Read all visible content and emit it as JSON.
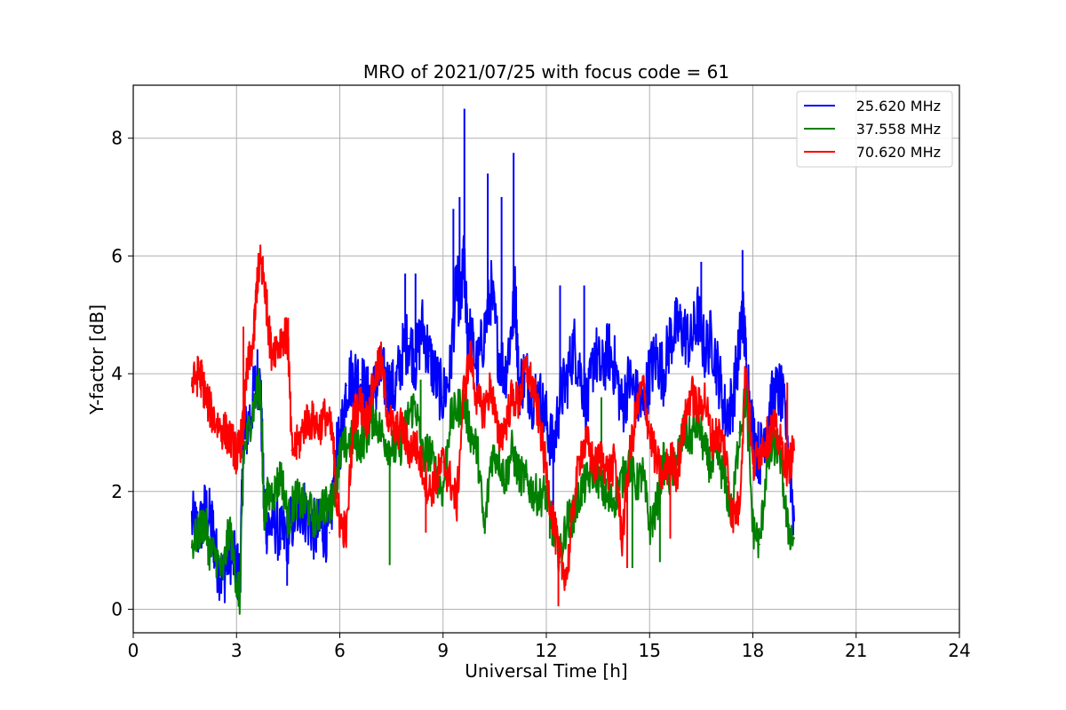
{
  "chart_data": {
    "type": "line",
    "title": "MRO of 2021/07/25 with focus code = 61",
    "xlabel": "Universal Time [h]",
    "ylabel": "Y-factor [dB]",
    "xlim": [
      0,
      24
    ],
    "ylim": [
      -0.4,
      8.9
    ],
    "xticks": [
      0,
      3,
      6,
      9,
      12,
      15,
      18,
      21,
      24
    ],
    "yticks": [
      0,
      2,
      4,
      6,
      8
    ],
    "grid": true,
    "legend_position": "top-right",
    "series": [
      {
        "name": "25.620 MHz",
        "color": "#0000ff",
        "x": [
          1.7,
          1.9,
          2.1,
          2.3,
          2.4,
          2.6,
          2.8,
          3.0,
          3.1,
          3.2,
          3.4,
          3.6,
          3.7,
          3.8,
          3.9,
          4.1,
          4.3,
          4.5,
          4.7,
          4.9,
          5.1,
          5.3,
          5.5,
          5.7,
          5.9,
          6.0,
          6.2,
          6.4,
          6.6,
          6.8,
          7.0,
          7.2,
          7.4,
          7.6,
          7.8,
          8.0,
          8.2,
          8.4,
          8.6,
          8.8,
          9.0,
          9.2,
          9.4,
          9.5,
          9.6,
          9.7,
          9.8,
          10.0,
          10.2,
          10.4,
          10.6,
          10.8,
          11.0,
          11.1,
          11.2,
          11.4,
          11.6,
          11.8,
          12.0,
          12.2,
          12.4,
          12.6,
          12.8,
          13.0,
          13.2,
          13.4,
          13.6,
          13.8,
          14.0,
          14.2,
          14.4,
          14.6,
          14.8,
          15.0,
          15.2,
          15.4,
          15.6,
          15.8,
          16.0,
          16.2,
          16.4,
          16.6,
          16.8,
          17.0,
          17.2,
          17.4,
          17.6,
          17.7,
          17.8,
          18.0,
          18.2,
          18.4,
          18.6,
          18.8,
          19.0,
          19.2
        ],
        "y": [
          1.5,
          1.3,
          1.7,
          1.4,
          0.9,
          0.5,
          1.0,
          0.7,
          0.5,
          2.8,
          3.3,
          4.0,
          3.7,
          1.7,
          1.4,
          1.5,
          1.2,
          1.3,
          1.6,
          1.8,
          1.5,
          1.3,
          1.4,
          1.3,
          2.6,
          2.8,
          3.8,
          4.0,
          3.9,
          3.6,
          3.7,
          4.0,
          3.8,
          3.7,
          4.3,
          4.6,
          4.2,
          4.8,
          4.3,
          3.9,
          3.6,
          4.0,
          5.6,
          5.1,
          5.9,
          4.8,
          4.6,
          4.1,
          4.7,
          5.4,
          4.4,
          4.0,
          4.8,
          5.4,
          3.8,
          4.0,
          3.6,
          3.6,
          3.2,
          2.7,
          3.6,
          3.9,
          4.5,
          4.0,
          3.4,
          4.4,
          4.0,
          4.4,
          4.1,
          3.4,
          3.9,
          3.6,
          3.4,
          4.0,
          4.3,
          4.0,
          4.6,
          4.8,
          4.7,
          4.5,
          5.0,
          4.4,
          4.6,
          4.0,
          3.3,
          3.5,
          4.4,
          5.1,
          4.3,
          3.0,
          2.6,
          3.2,
          3.6,
          3.7,
          3.0,
          1.5
        ],
        "spikes": [
          [
            4.47,
            0.4
          ],
          [
            7.9,
            5.7
          ],
          [
            8.2,
            5.7
          ],
          [
            9.3,
            6.8
          ],
          [
            9.48,
            7.0
          ],
          [
            9.62,
            8.5
          ],
          [
            10.3,
            7.4
          ],
          [
            10.7,
            7.0
          ],
          [
            11.05,
            7.75
          ],
          [
            12.2,
            1.4
          ],
          [
            12.4,
            5.5
          ],
          [
            13.1,
            5.5
          ],
          [
            16.5,
            5.9
          ],
          [
            17.7,
            6.1
          ]
        ]
      },
      {
        "name": "37.558 MHz",
        "color": "#008000",
        "x": [
          1.7,
          1.9,
          2.1,
          2.2,
          2.4,
          2.6,
          2.8,
          3.0,
          3.1,
          3.2,
          3.4,
          3.6,
          3.7,
          3.8,
          3.9,
          4.1,
          4.3,
          4.5,
          4.7,
          4.9,
          5.1,
          5.3,
          5.5,
          5.7,
          5.9,
          6.0,
          6.2,
          6.4,
          6.6,
          6.8,
          7.0,
          7.2,
          7.4,
          7.6,
          7.8,
          8.0,
          8.2,
          8.4,
          8.6,
          8.8,
          9.0,
          9.2,
          9.4,
          9.6,
          9.8,
          10.0,
          10.2,
          10.4,
          10.6,
          10.8,
          11.0,
          11.2,
          11.4,
          11.6,
          11.8,
          12.0,
          12.2,
          12.4,
          12.6,
          12.8,
          13.0,
          13.2,
          13.4,
          13.6,
          13.8,
          14.0,
          14.2,
          14.4,
          14.6,
          14.8,
          15.0,
          15.2,
          15.4,
          15.6,
          15.8,
          16.0,
          16.2,
          16.4,
          16.6,
          16.8,
          17.0,
          17.2,
          17.4,
          17.6,
          17.8,
          18.0,
          18.2,
          18.4,
          18.6,
          18.8,
          19.0,
          19.2
        ],
        "y": [
          1.1,
          1.3,
          1.5,
          1.0,
          0.9,
          0.6,
          1.4,
          0.5,
          0.2,
          2.6,
          3.2,
          3.7,
          3.8,
          1.6,
          1.9,
          2.0,
          2.3,
          1.5,
          1.9,
          1.8,
          1.7,
          1.5,
          1.8,
          1.7,
          2.2,
          2.6,
          2.8,
          2.9,
          2.8,
          3.0,
          3.3,
          3.0,
          2.8,
          2.7,
          2.8,
          3.3,
          3.5,
          2.6,
          2.7,
          2.3,
          2.0,
          3.2,
          3.4,
          3.5,
          3.0,
          2.7,
          1.3,
          2.6,
          2.6,
          2.2,
          2.7,
          2.3,
          2.2,
          2.0,
          1.9,
          2.0,
          1.3,
          0.9,
          1.5,
          1.6,
          2.0,
          2.2,
          2.4,
          2.1,
          1.8,
          1.9,
          2.2,
          2.5,
          2.1,
          2.3,
          1.4,
          1.7,
          2.5,
          2.2,
          2.6,
          3.0,
          2.9,
          3.2,
          2.7,
          2.4,
          2.6,
          2.1,
          1.6,
          3.0,
          3.6,
          1.4,
          1.1,
          2.4,
          2.8,
          2.6,
          1.4,
          1.2
        ],
        "spikes": [
          [
            7.45,
            0.75
          ],
          [
            8.35,
            3.9
          ],
          [
            12.1,
            1.2
          ],
          [
            13.6,
            3.6
          ],
          [
            14.5,
            0.7
          ],
          [
            15.3,
            0.8
          ]
        ]
      },
      {
        "name": "70.620 MHz",
        "color": "#ff0000",
        "x": [
          1.7,
          1.9,
          2.0,
          2.1,
          2.3,
          2.5,
          2.7,
          2.9,
          3.0,
          3.1,
          3.2,
          3.3,
          3.5,
          3.6,
          3.7,
          3.8,
          3.9,
          4.0,
          4.2,
          4.4,
          4.5,
          4.6,
          4.8,
          5.0,
          5.2,
          5.4,
          5.6,
          5.8,
          5.9,
          6.0,
          6.2,
          6.4,
          6.6,
          6.8,
          7.0,
          7.2,
          7.4,
          7.6,
          7.8,
          8.0,
          8.2,
          8.4,
          8.6,
          8.8,
          9.0,
          9.2,
          9.4,
          9.6,
          9.8,
          10.0,
          10.2,
          10.4,
          10.6,
          10.8,
          11.0,
          11.2,
          11.4,
          11.6,
          11.8,
          12.0,
          12.2,
          12.4,
          12.6,
          12.8,
          13.0,
          13.2,
          13.4,
          13.6,
          13.8,
          14.0,
          14.2,
          14.4,
          14.6,
          14.8,
          15.0,
          15.2,
          15.4,
          15.6,
          15.8,
          16.0,
          16.2,
          16.4,
          16.6,
          16.8,
          17.0,
          17.2,
          17.4,
          17.6,
          17.8,
          18.0,
          18.2,
          18.4,
          18.6,
          18.8,
          19.0,
          19.2
        ],
        "y": [
          3.8,
          4.0,
          3.9,
          3.6,
          3.3,
          3.1,
          3.0,
          2.8,
          2.6,
          2.8,
          3.1,
          4.0,
          4.6,
          5.6,
          5.9,
          5.6,
          5.0,
          4.4,
          4.5,
          4.7,
          4.5,
          2.7,
          2.8,
          3.2,
          3.2,
          3.1,
          3.3,
          2.9,
          1.9,
          1.5,
          1.3,
          3.3,
          3.5,
          3.2,
          3.9,
          4.2,
          3.3,
          3.0,
          3.1,
          2.7,
          2.8,
          2.4,
          2.0,
          2.2,
          2.5,
          2.2,
          1.8,
          3.7,
          4.3,
          3.5,
          3.4,
          3.8,
          2.9,
          3.1,
          3.6,
          3.5,
          4.1,
          3.8,
          3.2,
          2.3,
          1.5,
          0.8,
          0.6,
          1.8,
          2.7,
          2.8,
          2.4,
          2.6,
          2.3,
          2.5,
          1.2,
          2.5,
          3.3,
          3.8,
          3.0,
          2.5,
          2.2,
          2.6,
          2.3,
          3.1,
          3.7,
          3.4,
          3.6,
          2.9,
          3.0,
          2.7,
          1.6,
          1.7,
          4.2,
          2.4,
          2.7,
          2.9,
          3.1,
          2.8,
          2.4,
          2.7
        ],
        "spikes": [
          [
            3.2,
            4.8
          ],
          [
            4.5,
            4.95
          ],
          [
            7.1,
            4.4
          ],
          [
            8.5,
            1.3
          ],
          [
            12.35,
            0.05
          ],
          [
            14.35,
            0.7
          ],
          [
            15.6,
            1.2
          ],
          [
            19.0,
            3.85
          ]
        ]
      }
    ]
  }
}
